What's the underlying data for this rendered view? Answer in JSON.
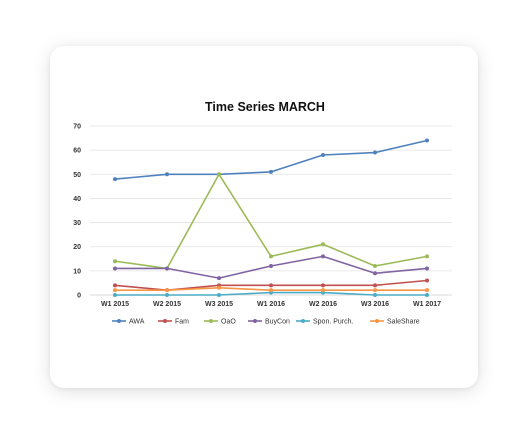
{
  "chart_data": {
    "type": "line",
    "title": "Time Series MARCH",
    "categories": [
      "W1 2015",
      "W2 2015",
      "W3 2015",
      "W1 2016",
      "W2 2016",
      "W3 2016",
      "W1 2017"
    ],
    "ylim": [
      0,
      70
    ],
    "yticks": [
      0,
      10,
      20,
      30,
      40,
      50,
      60,
      70
    ],
    "grid": true,
    "legend_position": "bottom",
    "series": [
      {
        "name": "AWA",
        "color": "#4f81bd",
        "values": [
          48,
          50,
          50,
          51,
          58,
          59,
          64
        ]
      },
      {
        "name": "Fam",
        "color": "#c0504d",
        "values": [
          4,
          2,
          4,
          4,
          4,
          4,
          6
        ]
      },
      {
        "name": "OaO",
        "color": "#9bbb59",
        "values": [
          14,
          11,
          50,
          16,
          21,
          12,
          16
        ]
      },
      {
        "name": "BuyCon",
        "color": "#8064a2",
        "values": [
          11,
          11,
          7,
          12,
          16,
          9,
          11
        ]
      },
      {
        "name": "Spon. Purch.",
        "color": "#4bacc6",
        "values": [
          0,
          0,
          0,
          1,
          1,
          0,
          0
        ]
      },
      {
        "name": "SaleShare",
        "color": "#f79646",
        "values": [
          2,
          2,
          3,
          2,
          2,
          2,
          2
        ]
      }
    ]
  }
}
